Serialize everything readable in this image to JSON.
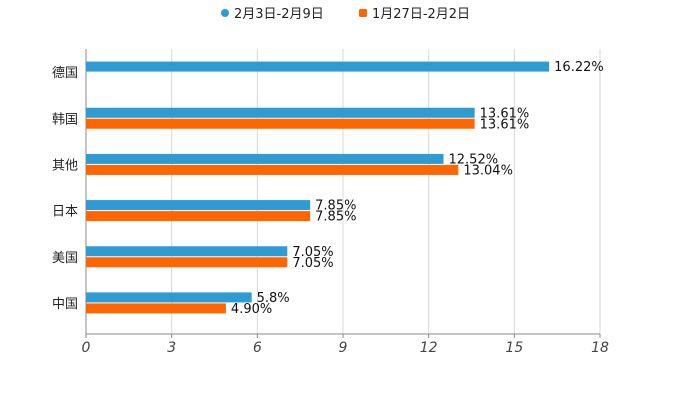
{
  "chart_data": {
    "type": "bar",
    "orientation": "horizontal",
    "categories": [
      "德国",
      "韩国",
      "其他",
      "日本",
      "美国",
      "中国"
    ],
    "series": [
      {
        "name": "2月3日-2月9日",
        "color": "#2e9bd2",
        "values": [
          16.22,
          13.61,
          12.52,
          7.85,
          7.05,
          5.8
        ],
        "labels": [
          "16.22%",
          "13.61%",
          "12.52%",
          "7.85%",
          "7.05%",
          "5.8%"
        ]
      },
      {
        "name": "1月27日-2月2日",
        "color": "#ff6600",
        "values": [
          null,
          13.61,
          13.04,
          7.85,
          7.05,
          4.9
        ],
        "labels": [
          "",
          "13.61%",
          "13.04%",
          "7.85%",
          "7.05%",
          "4.90%"
        ]
      }
    ],
    "xlim": [
      0,
      18
    ],
    "xticks": [
      0,
      3,
      6,
      9,
      12,
      15,
      18
    ],
    "xtick_labels": [
      "0",
      "3",
      "6",
      "9",
      "12",
      "15",
      "18"
    ],
    "grid": true,
    "legend": "top-center",
    "title": "",
    "xlabel": "",
    "ylabel": ""
  }
}
